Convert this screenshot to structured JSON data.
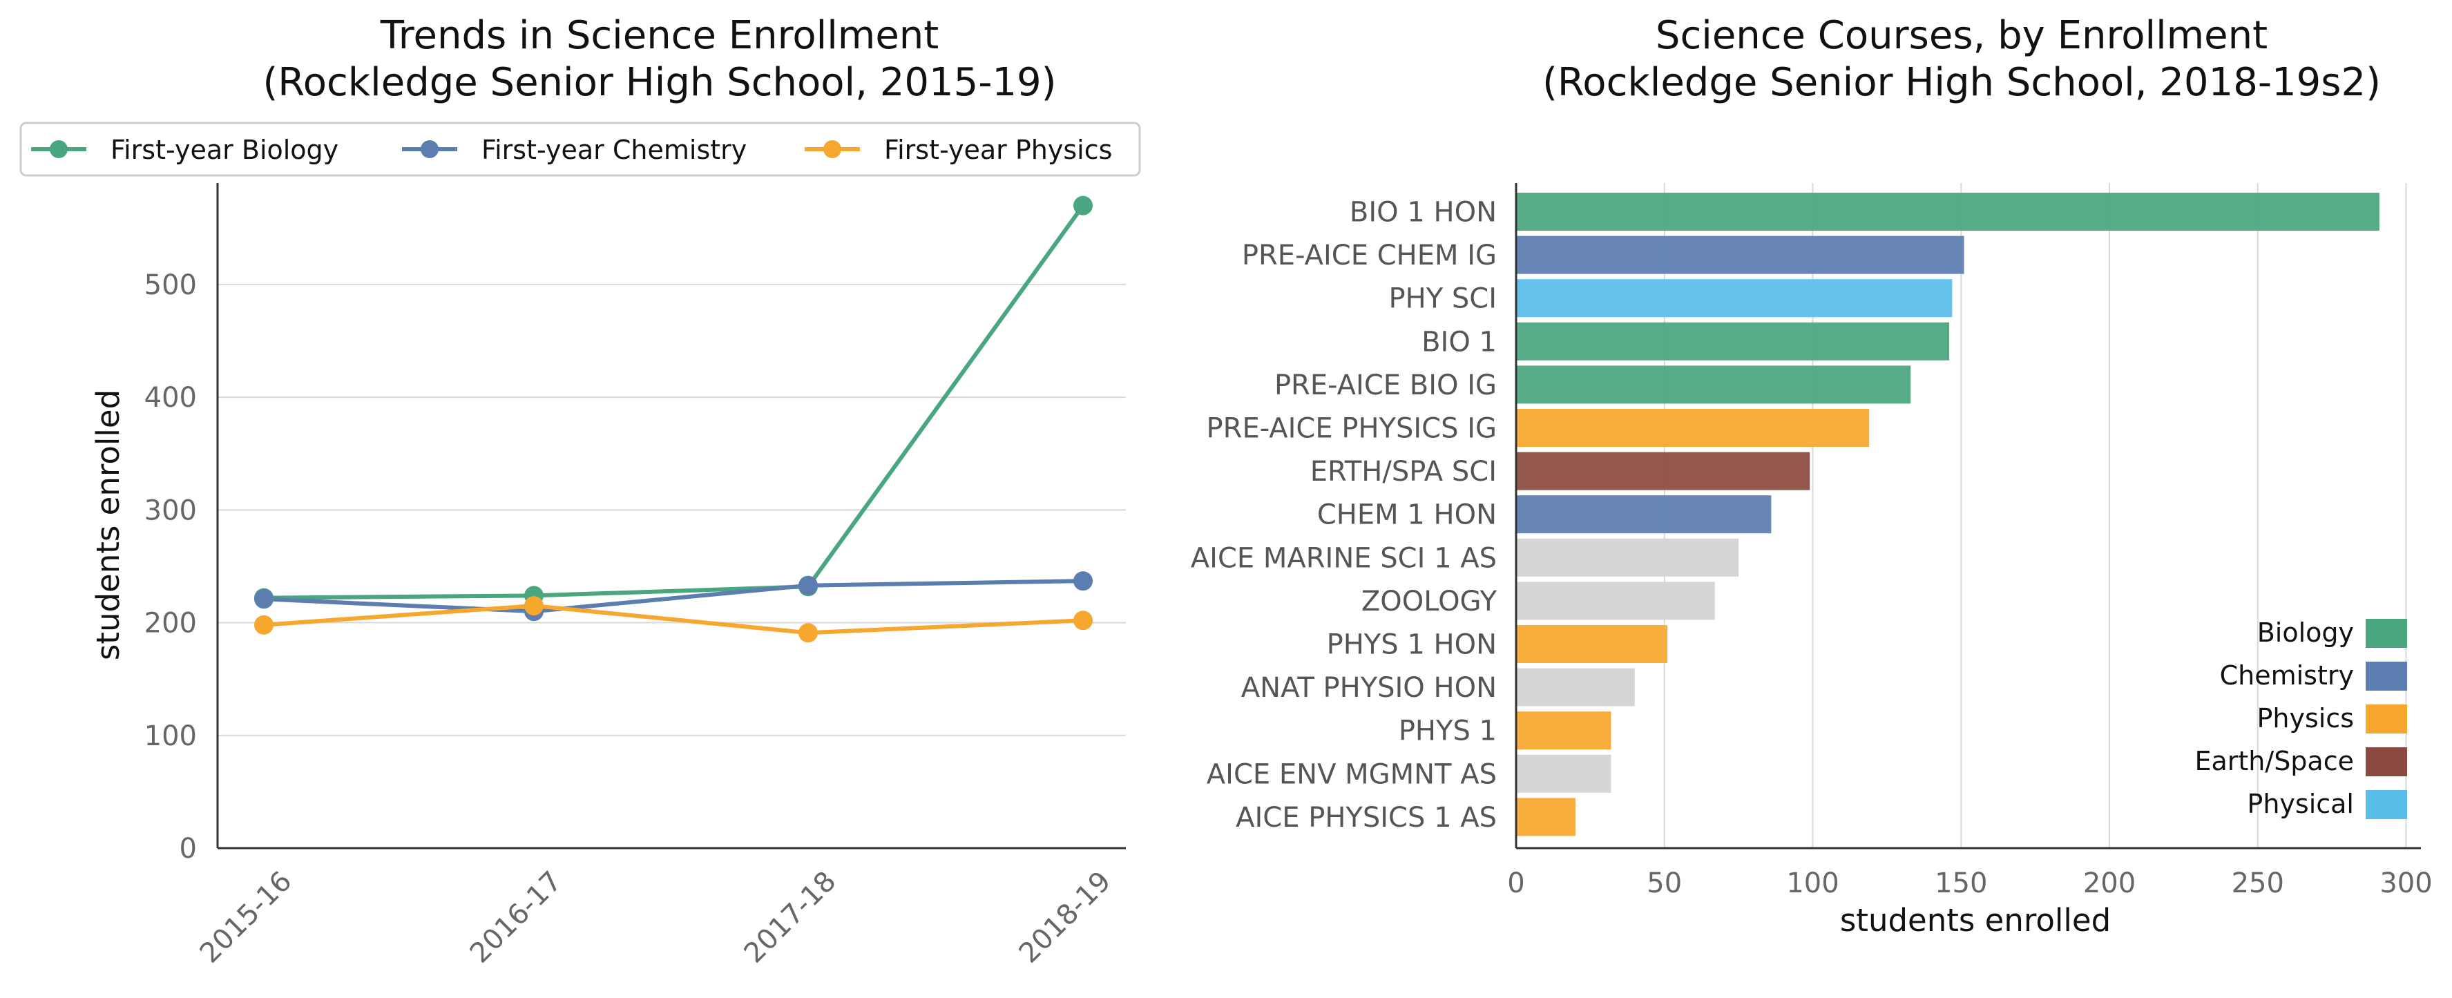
{
  "chart_data": [
    {
      "type": "line",
      "title": "Trends in Science Enrollment",
      "subtitle": "(Rockledge Senior High School, 2015-19)",
      "ylabel": "students enrolled",
      "xlabel": "",
      "categories": [
        "2015-16",
        "2016-17",
        "2017-18",
        "2018-19"
      ],
      "yticks": [
        0,
        100,
        200,
        300,
        400,
        500
      ],
      "ylim": [
        0,
        590
      ],
      "grid": "horizontal",
      "legend_position": "top",
      "series": [
        {
          "name": "First-year Biology",
          "color": "#4aa67f",
          "values": [
            222,
            224,
            232,
            570
          ]
        },
        {
          "name": "First-year Chemistry",
          "color": "#5b7db0",
          "values": [
            221,
            210,
            233,
            237
          ]
        },
        {
          "name": "First-year Physics",
          "color": "#f8a72e",
          "values": [
            198,
            215,
            191,
            202
          ]
        }
      ]
    },
    {
      "type": "bar",
      "orientation": "horizontal",
      "title": "Science Courses, by Enrollment",
      "subtitle": "(Rockledge Senior High School, 2018-19s2)",
      "xlabel": "students enrolled",
      "ylabel": "",
      "xticks": [
        0,
        50,
        100,
        150,
        200,
        250,
        300
      ],
      "xlim": [
        0,
        305
      ],
      "grid": "vertical",
      "legend_position": "bottom-right",
      "categories": [
        "BIO 1 HON",
        "PRE-AICE CHEM IG",
        "PHY SCI",
        "BIO 1",
        "PRE-AICE BIO IG",
        "PRE-AICE PHYSICS IG",
        "ERTH/SPA SCI",
        "CHEM 1 HON",
        "AICE MARINE SCI 1 AS",
        "ZOOLOGY",
        "PHYS 1 HON",
        "ANAT PHYSIO HON",
        "PHYS 1",
        "AICE ENV MGMNT AS",
        "AICE PHYSICS 1 AS"
      ],
      "values": [
        291,
        151,
        147,
        146,
        133,
        119,
        99,
        86,
        75,
        67,
        51,
        40,
        32,
        32,
        20
      ],
      "subjects": [
        "Biology",
        "Chemistry",
        "Physical",
        "Biology",
        "Biology",
        "Physics",
        "Earth/Space",
        "Chemistry",
        "Other",
        "Other",
        "Physics",
        "Other",
        "Physics",
        "Other",
        "Physics"
      ],
      "legend": [
        {
          "name": "Biology",
          "color": "#4aa67f"
        },
        {
          "name": "Chemistry",
          "color": "#5b7db0"
        },
        {
          "name": "Physics",
          "color": "#f8a72e"
        },
        {
          "name": "Earth/Space",
          "color": "#8b4a40"
        },
        {
          "name": "Physical",
          "color": "#5bbdea"
        }
      ],
      "other_color": "#d3d3d3"
    }
  ]
}
